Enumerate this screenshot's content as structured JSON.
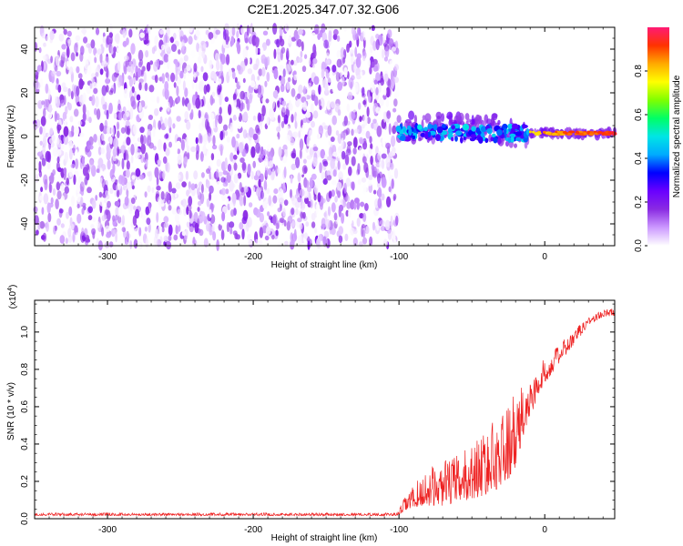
{
  "title": "C2E1.2025.347.07.32.G06",
  "chart_data": [
    {
      "type": "heatmap",
      "name": "spectrogram",
      "xlabel": "Height of straight line (km)",
      "ylabel": "Frequency (Hz)",
      "xlim": [
        -350,
        48
      ],
      "ylim": [
        -50,
        50
      ],
      "xticks": [
        -300,
        -200,
        -100,
        0
      ],
      "yticks": [
        -40,
        -20,
        0,
        20,
        40
      ],
      "noise_region_x": [
        -350,
        -101
      ],
      "signal_region_x": [
        -101,
        48
      ],
      "signal_center_hz": 1.5,
      "colorbar": {
        "label": "Normalized spectral amplitude",
        "range": [
          0,
          1
        ],
        "ticks": [
          "0.0",
          "0.2",
          "0.4",
          "0.6",
          "0.8"
        ],
        "tick_values": [
          0,
          0.2,
          0.4,
          0.6,
          0.8
        ],
        "colors": [
          "#ffffff",
          "#cc99ff",
          "#8a2be2",
          "#6a00ff",
          "#0000ff",
          "#00aaff",
          "#00e5e5",
          "#00ff66",
          "#7fff00",
          "#ffff00",
          "#ffaa00",
          "#ff3300",
          "#ff1a75"
        ]
      }
    },
    {
      "type": "line",
      "name": "snr",
      "xlabel": "Height of straight line (km)",
      "ylabel": "SNR (10 * v/v)",
      "yscale_note": "(x10",
      "yscale_exp": "4",
      "xlim": [
        -350,
        48
      ],
      "ylim": [
        0,
        1.17
      ],
      "xticks": [
        -300,
        -200,
        -100,
        0
      ],
      "yticks": [
        0.0,
        0.2,
        0.4,
        0.6,
        0.8,
        1.0
      ],
      "ytick_labels": [
        "0.0",
        "0.2",
        "0.4",
        "0.6",
        "0.8",
        "1.0"
      ],
      "color": "#ee2222",
      "envelope": {
        "x": [
          -350,
          -101,
          -96,
          -90,
          -80,
          -70,
          -60,
          -50,
          -40,
          -30,
          -20,
          -15,
          -10,
          -5,
          0,
          10,
          20,
          30,
          40,
          48
        ],
        "base": [
          0.02,
          0.02,
          0.06,
          0.09,
          0.12,
          0.13,
          0.15,
          0.18,
          0.22,
          0.27,
          0.36,
          0.5,
          0.6,
          0.68,
          0.76,
          0.86,
          0.95,
          1.05,
          1.09,
          1.1
        ],
        "amp": [
          0.015,
          0.015,
          0.08,
          0.12,
          0.2,
          0.24,
          0.26,
          0.3,
          0.36,
          0.4,
          0.42,
          0.28,
          0.2,
          0.16,
          0.14,
          0.1,
          0.08,
          0.05,
          0.04,
          0.04
        ]
      }
    }
  ]
}
